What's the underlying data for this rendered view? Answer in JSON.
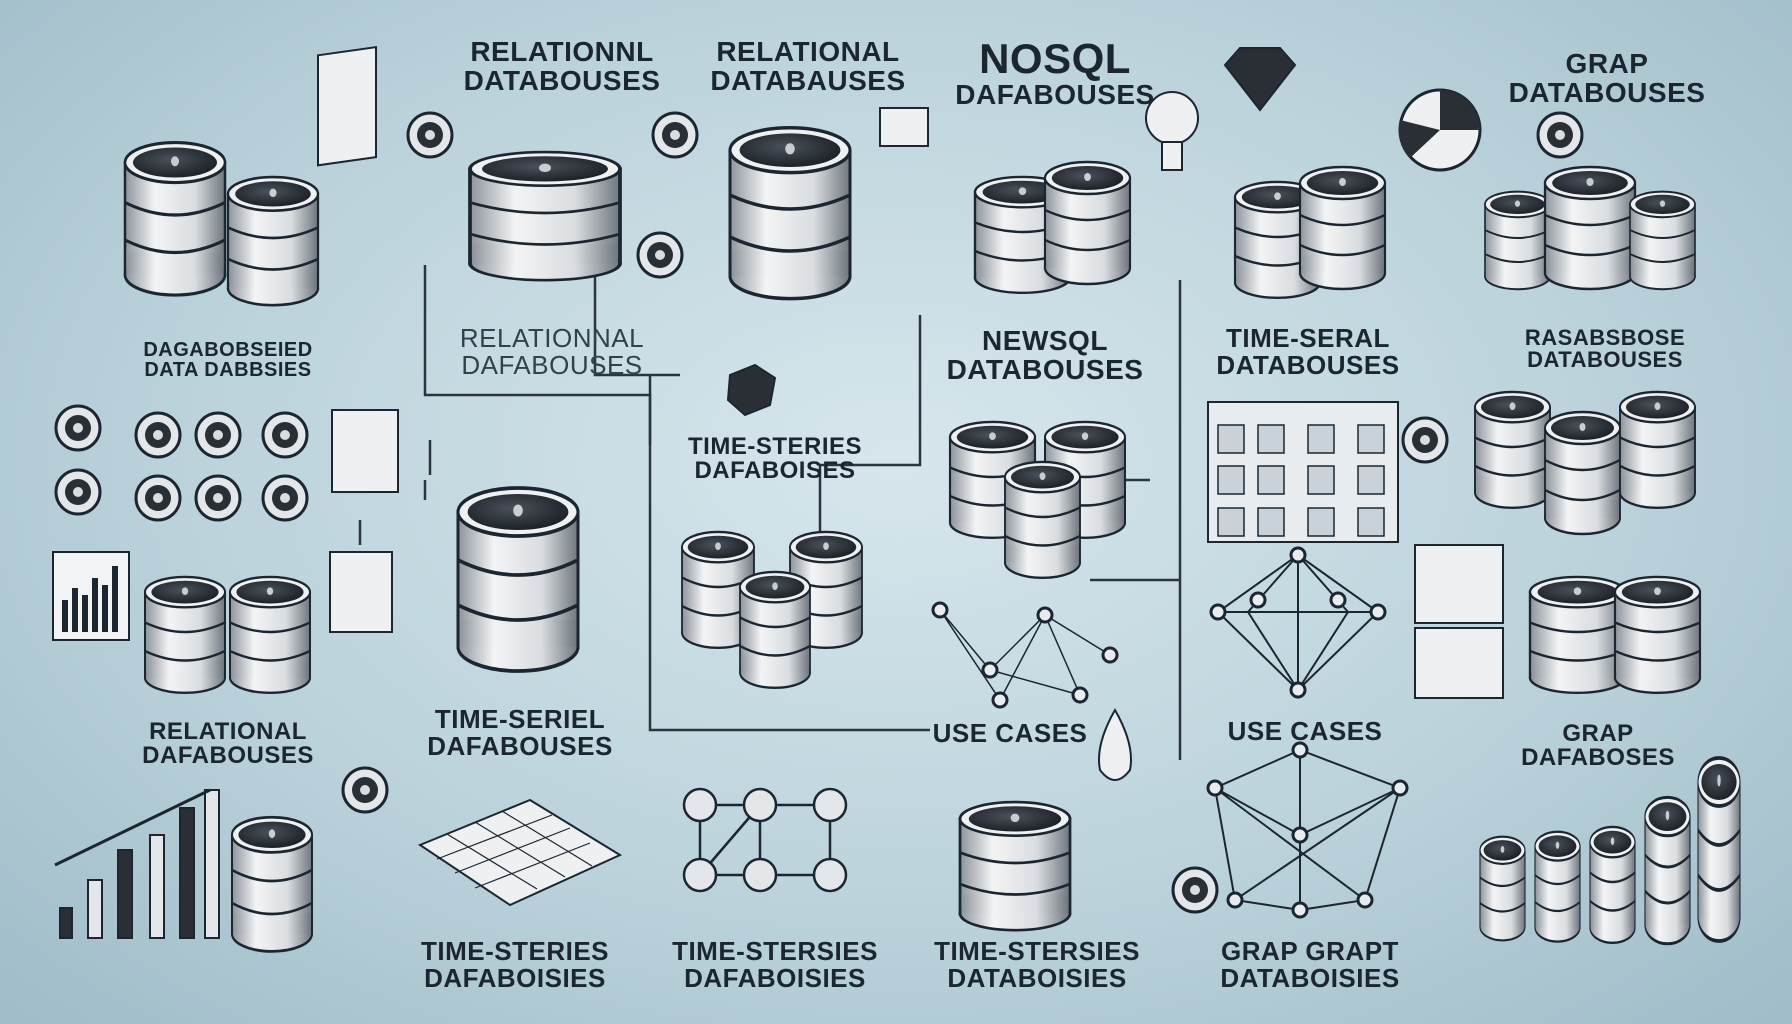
{
  "palette": {
    "background": "#bcd3dc",
    "ink": "#1b2630",
    "cylinder_top": "#2a2f36",
    "cylinder_body": "#e4e7ea"
  },
  "labels": [
    {
      "id": "rel-top-left",
      "line1": "RELATIONNL",
      "line2": "DATABOUSES"
    },
    {
      "id": "rel-top-mid",
      "line1": "RELATIONAL",
      "line2": "DATABAUSES"
    },
    {
      "id": "nosql-top",
      "line1": "NOSQL",
      "line2": "DAFABOUSES"
    },
    {
      "id": "graph-top",
      "line1": "GRAP",
      "line2": "DATABOUSES"
    },
    {
      "id": "data-left",
      "line1": "DAGABOBSEIED",
      "line2": "DATA DABBSIES"
    },
    {
      "id": "rel-mid",
      "line1": "RELATIONNAL",
      "line2": "DAFABOUSES"
    },
    {
      "id": "time-center",
      "line1": "TIME-STERIES",
      "line2": "DAFABOISES"
    },
    {
      "id": "newsql",
      "line1": "NEWSQL",
      "line2": "DATABOUSES"
    },
    {
      "id": "time-serial",
      "line1": "TIME-SERAL",
      "line2": "DATABOUSES"
    },
    {
      "id": "rasabe-right",
      "line1": "RASABSBOSE",
      "line2": "DATABOUSES"
    },
    {
      "id": "rel-lower-left",
      "line1": "RELATIONAL",
      "line2": "DAFABOUSES"
    },
    {
      "id": "time-serel",
      "line1": "TIME-SERIEL",
      "line2": "DAFABOUSES"
    },
    {
      "id": "use-cases-1",
      "line1": "USE CASES",
      "line2": ""
    },
    {
      "id": "use-cases-2",
      "line1": "USE CASES",
      "line2": ""
    },
    {
      "id": "grap-lower",
      "line1": "GRAP",
      "line2": "DAFABOSES"
    },
    {
      "id": "time-bottom-1",
      "line1": "TIME-STERIES",
      "line2": "DAFABOISIES"
    },
    {
      "id": "time-bottom-2",
      "line1": "TIME-STERSIES",
      "line2": "DAFABOISIES"
    },
    {
      "id": "time-bottom-3",
      "line1": "TIME-STERSIES",
      "line2": "DATABOISIES"
    },
    {
      "id": "grap-bottom",
      "line1": "GRAP GRAPT",
      "line2": "DATABOISIES"
    }
  ]
}
